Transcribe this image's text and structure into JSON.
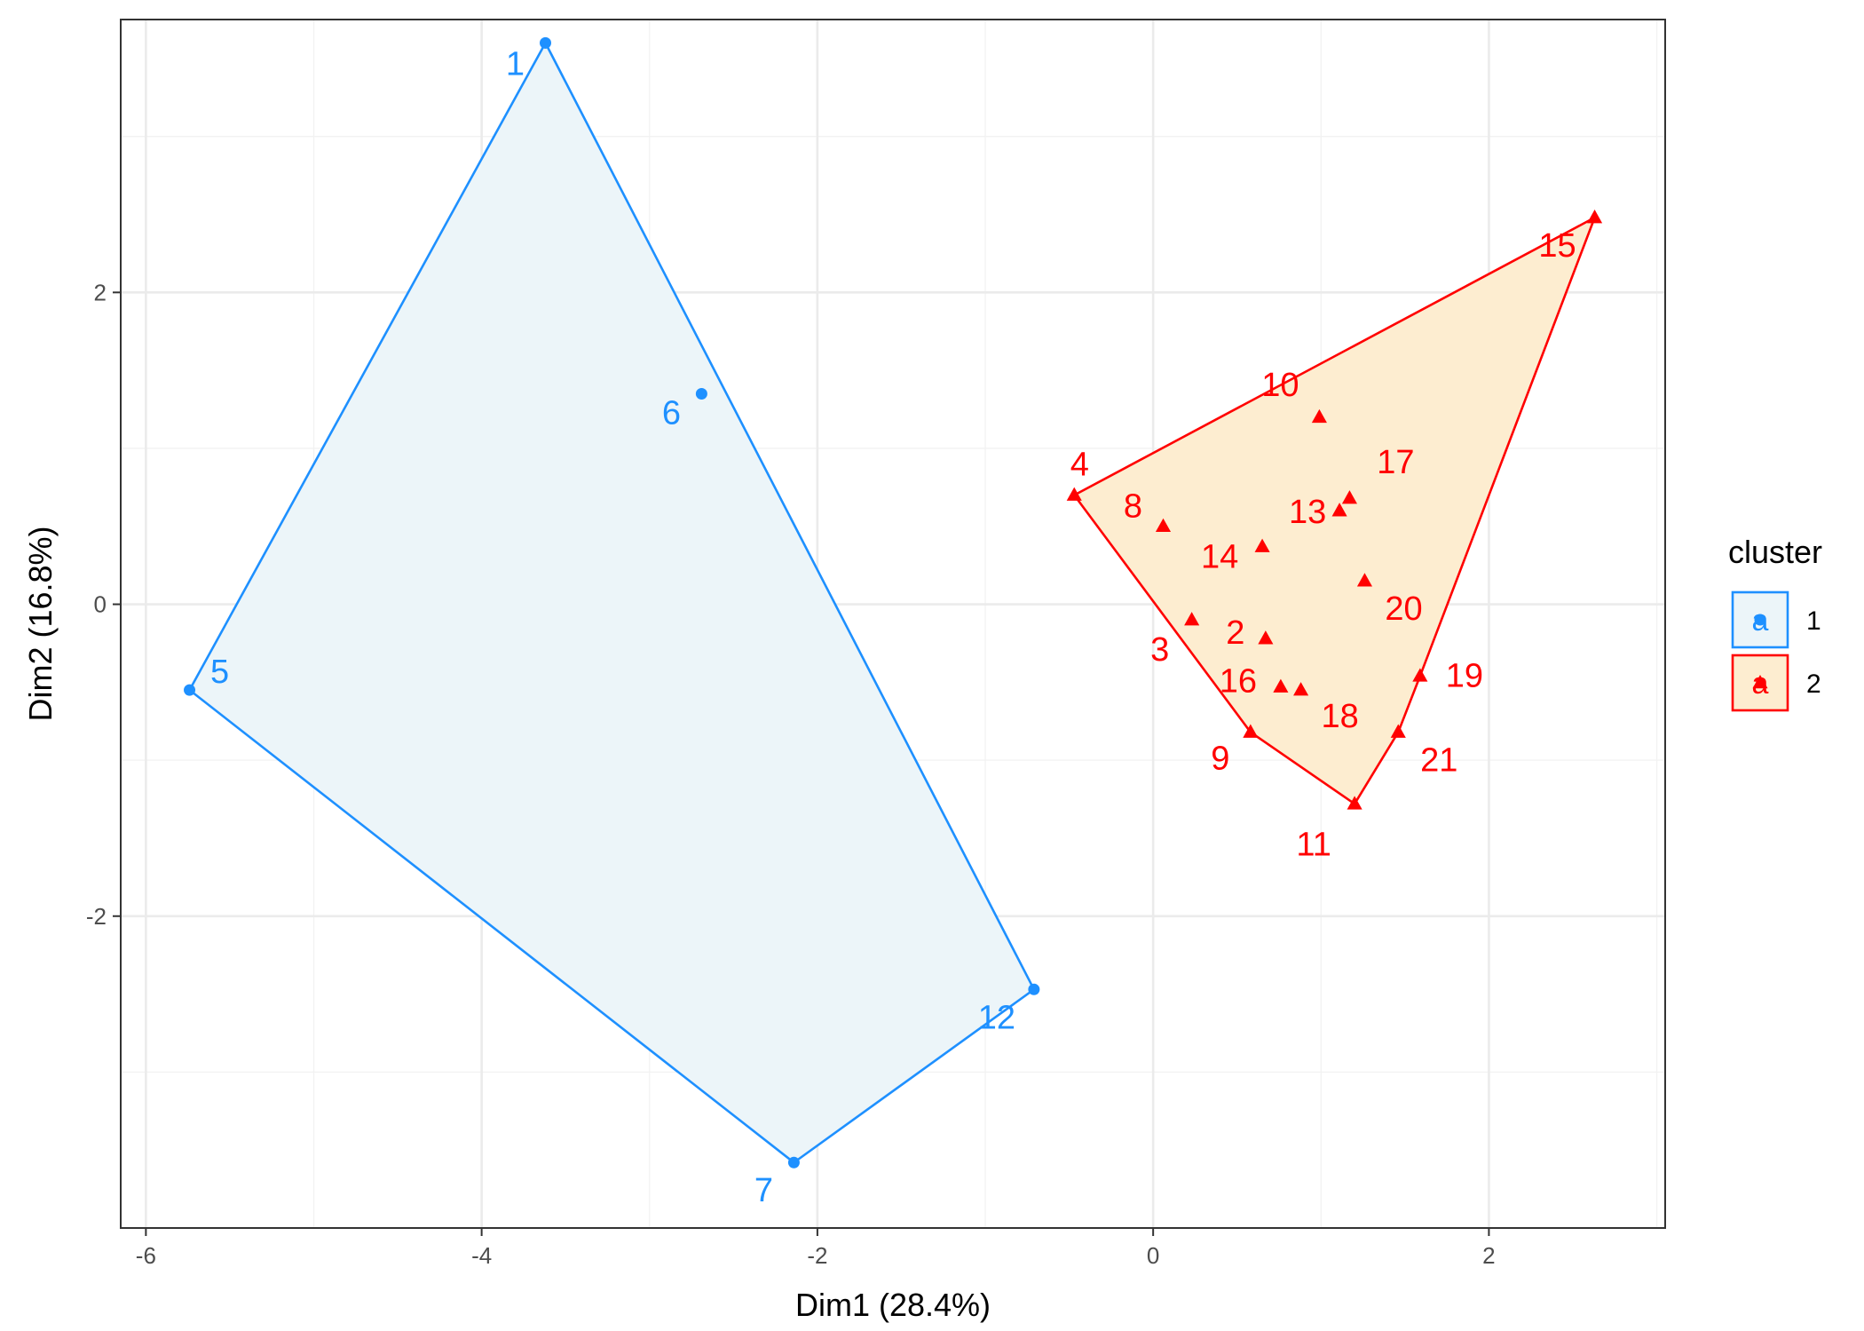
{
  "chart_data": {
    "type": "scatter",
    "xlabel": "Dim1 (28.4%)",
    "ylabel": "Dim2 (16.8%)",
    "xlim": [
      -6.15,
      3.05
    ],
    "ylim": [
      -4.0,
      3.75
    ],
    "x_ticks": [
      -6,
      -4,
      -2,
      0,
      2
    ],
    "x_tick_labels": [
      "-6",
      "-4",
      "-2",
      "0",
      "2"
    ],
    "y_ticks": [
      2,
      0,
      -2
    ],
    "y_tick_labels": [
      "2",
      "0",
      "-2"
    ],
    "grid": true,
    "legend": {
      "title": "cluster",
      "placement": "right",
      "key_glyph": "a",
      "entries": [
        {
          "label": "1",
          "color": "#1E90FF"
        },
        {
          "label": "2",
          "color": "#FF0000"
        }
      ]
    },
    "series": [
      {
        "name": "1",
        "color": "#1E90FF",
        "fill": "#ECF5F9",
        "marker": "circle",
        "points": [
          {
            "label": "1",
            "x": -3.62,
            "y": 3.6
          },
          {
            "label": "5",
            "x": -5.74,
            "y": -0.55
          },
          {
            "label": "6",
            "x": -2.69,
            "y": 1.35
          },
          {
            "label": "7",
            "x": -2.14,
            "y": -3.58
          },
          {
            "label": "12",
            "x": -0.71,
            "y": -2.47
          }
        ],
        "hull": [
          "1",
          "12",
          "7",
          "5"
        ]
      },
      {
        "name": "2",
        "color": "#FF0000",
        "fill": "#FDEDD0",
        "marker": "triangle",
        "points": [
          {
            "label": "2",
            "x": 0.67,
            "y": -0.22
          },
          {
            "label": "3",
            "x": 0.23,
            "y": -0.1
          },
          {
            "label": "4",
            "x": -0.47,
            "y": 0.7
          },
          {
            "label": "8",
            "x": 0.06,
            "y": 0.5
          },
          {
            "label": "9",
            "x": 0.58,
            "y": -0.82
          },
          {
            "label": "10",
            "x": 0.99,
            "y": 1.2
          },
          {
            "label": "11",
            "x": 1.2,
            "y": -1.28
          },
          {
            "label": "13",
            "x": 1.11,
            "y": 0.6
          },
          {
            "label": "14",
            "x": 0.65,
            "y": 0.37
          },
          {
            "label": "15",
            "x": 2.63,
            "y": 2.48
          },
          {
            "label": "16",
            "x": 0.76,
            "y": -0.53
          },
          {
            "label": "17",
            "x": 1.17,
            "y": 0.68
          },
          {
            "label": "18",
            "x": 0.88,
            "y": -0.55
          },
          {
            "label": "19",
            "x": 1.59,
            "y": -0.46
          },
          {
            "label": "20",
            "x": 1.26,
            "y": 0.15
          },
          {
            "label": "21",
            "x": 1.46,
            "y": -0.82
          }
        ],
        "hull": [
          "15",
          "4",
          "9",
          "11",
          "21",
          "19"
        ]
      }
    ]
  }
}
